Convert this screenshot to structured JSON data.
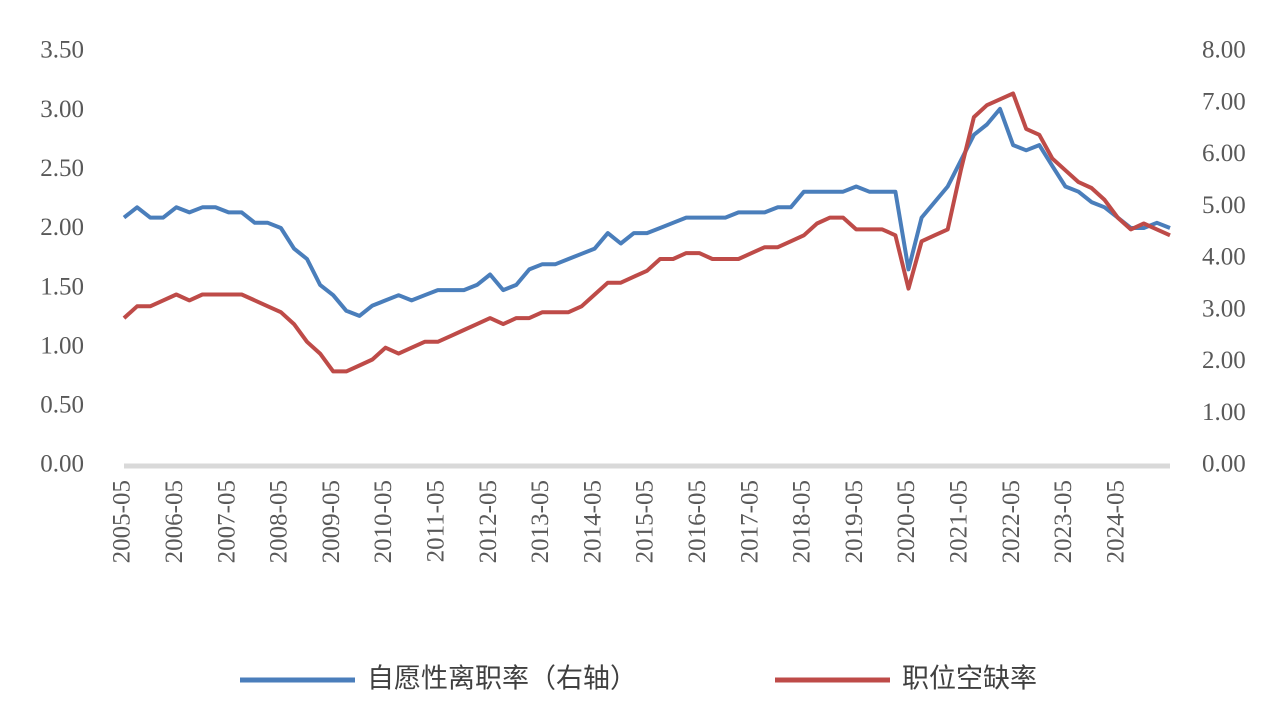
{
  "chart_data": {
    "type": "line",
    "categories": [
      "2005-05",
      null,
      null,
      null,
      "2006-05",
      null,
      null,
      null,
      "2007-05",
      null,
      null,
      null,
      "2008-05",
      null,
      null,
      null,
      "2009-05",
      null,
      null,
      null,
      "2010-05",
      null,
      null,
      null,
      "2011-05",
      null,
      null,
      null,
      "2012-05",
      null,
      null,
      null,
      "2013-05",
      null,
      null,
      null,
      "2014-05",
      null,
      null,
      null,
      "2015-05",
      null,
      null,
      null,
      "2016-05",
      null,
      null,
      null,
      "2017-05",
      null,
      null,
      null,
      "2018-05",
      null,
      null,
      null,
      "2019-05",
      null,
      null,
      null,
      "2020-05",
      null,
      null,
      null,
      "2021-05",
      null,
      null,
      null,
      "2022-05",
      null,
      null,
      null,
      "2023-05",
      null,
      null,
      null,
      "2024-05",
      null,
      null,
      null,
      null
    ],
    "series": [
      {
        "name": "自愿性离职率（右轴）",
        "color": "#4a7ebb",
        "axis": "y2",
        "values": [
          4.8,
          5.0,
          4.8,
          4.8,
          5.0,
          4.9,
          5.0,
          5.0,
          4.9,
          4.9,
          4.7,
          4.7,
          4.6,
          4.2,
          4.0,
          3.5,
          3.3,
          3.0,
          2.9,
          3.1,
          3.2,
          3.3,
          3.2,
          3.3,
          3.4,
          3.4,
          3.4,
          3.5,
          3.7,
          3.4,
          3.5,
          3.8,
          3.9,
          3.9,
          4.0,
          4.1,
          4.2,
          4.5,
          4.3,
          4.5,
          4.5,
          4.6,
          4.7,
          4.8,
          4.8,
          4.8,
          4.8,
          4.9,
          4.9,
          4.9,
          5.0,
          5.0,
          5.3,
          5.3,
          5.3,
          5.3,
          5.4,
          5.3,
          5.3,
          5.3,
          3.8,
          4.8,
          5.1,
          5.4,
          5.9,
          6.4,
          6.6,
          6.9,
          6.2,
          6.1,
          6.2,
          5.8,
          5.4,
          5.3,
          5.1,
          5.0,
          4.8,
          4.6,
          4.6,
          4.7,
          4.6
        ]
      },
      {
        "name": "职位空缺率",
        "color": "#be4b48",
        "values": [
          1.25,
          1.35,
          1.35,
          1.4,
          1.45,
          1.4,
          1.45,
          1.45,
          1.45,
          1.45,
          1.4,
          1.35,
          1.3,
          1.2,
          1.05,
          0.95,
          0.8,
          0.8,
          0.85,
          0.9,
          1.0,
          0.95,
          1.0,
          1.05,
          1.05,
          1.1,
          1.15,
          1.2,
          1.25,
          1.2,
          1.25,
          1.25,
          1.3,
          1.3,
          1.3,
          1.35,
          1.45,
          1.55,
          1.55,
          1.6,
          1.65,
          1.75,
          1.75,
          1.8,
          1.8,
          1.75,
          1.75,
          1.75,
          1.8,
          1.85,
          1.85,
          1.9,
          1.95,
          2.05,
          2.1,
          2.1,
          2.0,
          2.0,
          2.0,
          1.95,
          1.5,
          1.9,
          1.95,
          2.0,
          2.5,
          2.95,
          3.05,
          3.1,
          3.15,
          2.85,
          2.8,
          2.6,
          2.5,
          2.4,
          2.35,
          2.25,
          2.1,
          2.0,
          2.05,
          2.0,
          1.95
        ]
      }
    ],
    "ylim": [
      0,
      3.5
    ],
    "yticks": [
      {
        "value": 0,
        "label": "0.00"
      },
      {
        "value": 0.5,
        "label": "0.50"
      },
      {
        "value": 1,
        "label": "1.00"
      },
      {
        "value": 1.5,
        "label": "1.50"
      },
      {
        "value": 2,
        "label": "2.00"
      },
      {
        "value": 2.5,
        "label": "2.50"
      },
      {
        "value": 3,
        "label": "3.00"
      },
      {
        "value": 3.5,
        "label": "3.50"
      }
    ],
    "y2lim": [
      0,
      8
    ],
    "y2ticks": [
      {
        "value": 0,
        "label": "0.00"
      },
      {
        "value": 1,
        "label": "1.00"
      },
      {
        "value": 2,
        "label": "2.00"
      },
      {
        "value": 3,
        "label": "3.00"
      },
      {
        "value": 4,
        "label": "4.00"
      },
      {
        "value": 5,
        "label": "5.00"
      },
      {
        "value": 6,
        "label": "6.00"
      },
      {
        "value": 7,
        "label": "7.00"
      },
      {
        "value": 8,
        "label": "8.00"
      }
    ],
    "legend": "bottom"
  }
}
